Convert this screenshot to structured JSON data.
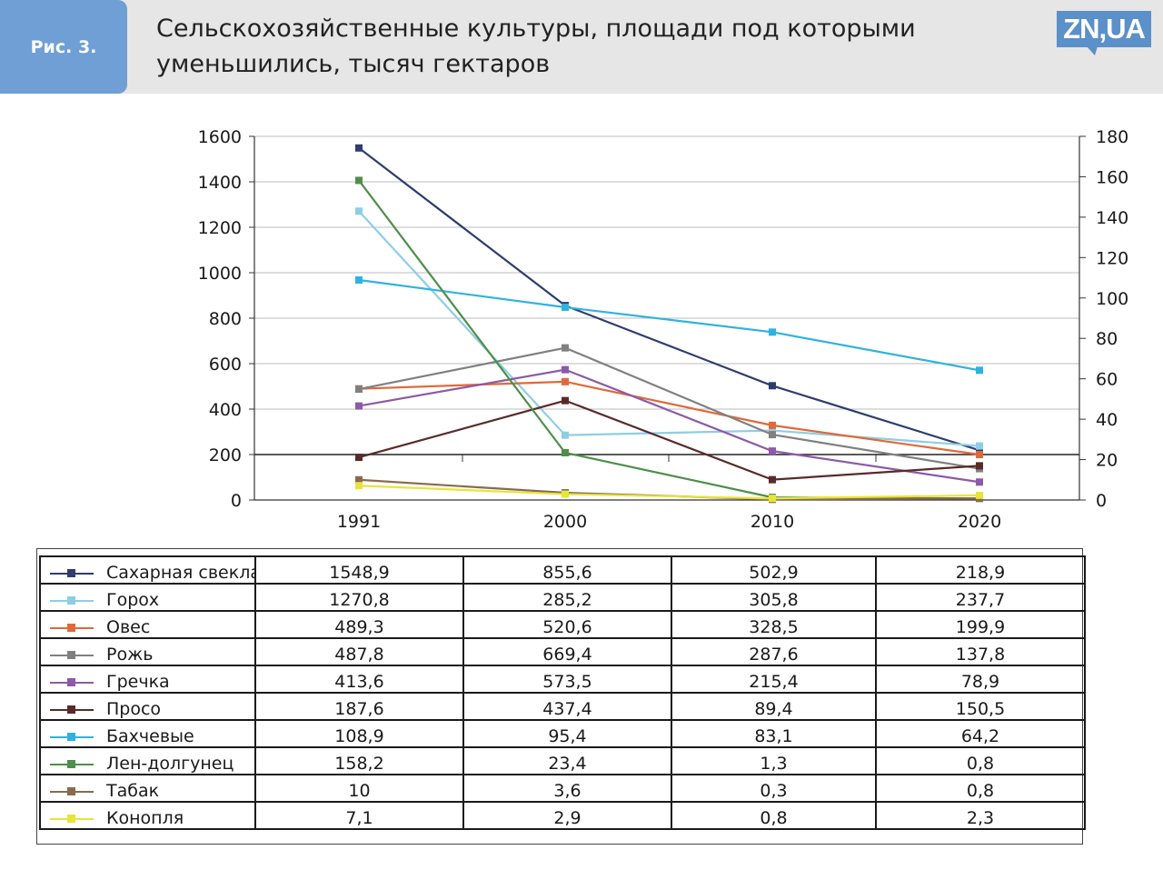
{
  "header": {
    "figure_label": "Рис. 3.",
    "title_line1": "Сельскохозяйственные культуры, площади под которыми",
    "title_line2": "уменьшились, тысяч гектаров",
    "logo_text": "ZN,UA",
    "brand_color": "#5b90c8"
  },
  "chart_data": {
    "type": "line",
    "title": "Сельскохозяйственные культуры, площади под которыми уменьшились, тысяч гектаров",
    "xlabel": "",
    "ylabel": "тысяч гектаров",
    "categories": [
      "1991",
      "2000",
      "2010",
      "2020"
    ],
    "y_left": {
      "min": 0,
      "max": 1600,
      "ticks": [
        "0",
        "200",
        "400",
        "600",
        "800",
        "1000",
        "1200",
        "1400",
        "1600"
      ]
    },
    "y_right": {
      "min": 0,
      "max": 180,
      "ticks": [
        "0",
        "20",
        "40",
        "60",
        "80",
        "100",
        "120",
        "140",
        "160",
        "180"
      ]
    },
    "grid": true,
    "legend": "table-below",
    "series": [
      {
        "name": "Сахарная свекла",
        "color": "#2e3d6e",
        "axis": "left",
        "values": [
          1548.9,
          855.6,
          502.9,
          218.9
        ],
        "labels": [
          "1548,9",
          "855,6",
          "502,9",
          "218,9"
        ]
      },
      {
        "name": "Горох",
        "color": "#8ecde6",
        "axis": "left",
        "values": [
          1270.8,
          285.2,
          305.8,
          237.7
        ],
        "labels": [
          "1270,8",
          "285,2",
          "305,8",
          "237,7"
        ]
      },
      {
        "name": "Овес",
        "color": "#e0693a",
        "axis": "left",
        "values": [
          489.3,
          520.6,
          328.5,
          199.9
        ],
        "labels": [
          "489,3",
          "520,6",
          "328,5",
          "199,9"
        ]
      },
      {
        "name": "Рожь",
        "color": "#808080",
        "axis": "left",
        "values": [
          487.8,
          669.4,
          287.6,
          137.8
        ],
        "labels": [
          "487,8",
          "669,4",
          "287,6",
          "137,8"
        ]
      },
      {
        "name": "Гречка",
        "color": "#8c5aa8",
        "axis": "left",
        "values": [
          413.6,
          573.5,
          215.4,
          78.9
        ],
        "labels": [
          "413,6",
          "573,5",
          "215,4",
          "78,9"
        ]
      },
      {
        "name": "Просо",
        "color": "#5a2a2a",
        "axis": "left",
        "values": [
          187.6,
          437.4,
          89.4,
          150.5
        ],
        "labels": [
          "187,6",
          "437,4",
          "89,4",
          "150,5"
        ]
      },
      {
        "name": "Бахчевые",
        "color": "#2fb2e0",
        "axis": "right",
        "values": [
          108.9,
          95.4,
          83.1,
          64.2
        ],
        "labels": [
          "108,9",
          "95,4",
          "83,1",
          "64,2"
        ]
      },
      {
        "name": "Лен-долгунец",
        "color": "#4e8f4a",
        "axis": "right",
        "values": [
          158.2,
          23.4,
          1.3,
          0.8
        ],
        "labels": [
          "158,2",
          "23,4",
          "1,3",
          "0,8"
        ]
      },
      {
        "name": "Табак",
        "color": "#8a6a4e",
        "axis": "right",
        "values": [
          10,
          3.6,
          0.3,
          0.8
        ],
        "labels": [
          "10",
          "3,6",
          "0,3",
          "0,8"
        ]
      },
      {
        "name": "Конопля",
        "color": "#e8e43a",
        "axis": "right",
        "values": [
          7.1,
          2.9,
          0.8,
          2.3
        ],
        "labels": [
          "7,1",
          "2,9",
          "0,8",
          "2,3"
        ]
      }
    ]
  }
}
